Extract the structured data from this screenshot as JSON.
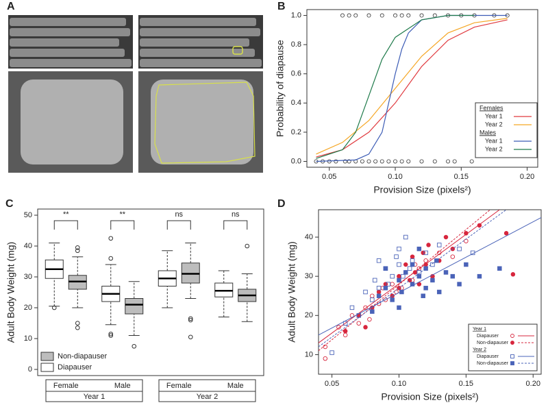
{
  "panel_a": {
    "label": "A"
  },
  "chart_data": [
    {
      "type": "line",
      "label": "B",
      "ylabel": "Probability of diapause",
      "xlabel": "Provision Size (pixels²)",
      "xlim": [
        0.033,
        0.208
      ],
      "ylim": [
        -0.04,
        1.04
      ],
      "xticks": [
        {
          "value": 0.05,
          "label": "0.05"
        },
        {
          "value": 0.1,
          "label": "0.10"
        },
        {
          "value": 0.15,
          "label": "0.15"
        },
        {
          "value": 0.2,
          "label": "0.20"
        }
      ],
      "yticks": [
        {
          "value": 0,
          "label": "0.0"
        },
        {
          "value": 0.2,
          "label": "0.2"
        },
        {
          "value": 0.4,
          "label": "0.4"
        },
        {
          "value": 0.6,
          "label": "0.6"
        },
        {
          "value": 0.8,
          "label": "0.8"
        },
        {
          "value": 1,
          "label": "1.0"
        }
      ],
      "legend": "lower right",
      "series_groups": [
        {
          "name": "Females",
          "series": [
            {
              "name": "Year 1",
              "color": "#e0393e",
              "x": [
                0.04,
                0.06,
                0.08,
                0.1,
                0.12,
                0.14,
                0.16,
                0.185
              ],
              "values": [
                0.03,
                0.08,
                0.2,
                0.4,
                0.65,
                0.83,
                0.92,
                0.97
              ]
            },
            {
              "name": "Year 2",
              "color": "#f5a623",
              "x": [
                0.04,
                0.06,
                0.08,
                0.1,
                0.12,
                0.14,
                0.16,
                0.185
              ],
              "values": [
                0.05,
                0.13,
                0.28,
                0.5,
                0.72,
                0.88,
                0.95,
                0.98
              ]
            }
          ]
        },
        {
          "name": "Males",
          "series": [
            {
              "name": "Year 1",
              "color": "#3b5bb5",
              "x": [
                0.04,
                0.07,
                0.08,
                0.09,
                0.1,
                0.105,
                0.11,
                0.12,
                0.14,
                0.185
              ],
              "values": [
                0.0,
                0.01,
                0.05,
                0.2,
                0.6,
                0.77,
                0.88,
                0.97,
                1.0,
                1.0
              ]
            },
            {
              "name": "Year 2",
              "color": "#1e7a4a",
              "x": [
                0.04,
                0.06,
                0.07,
                0.08,
                0.09,
                0.1,
                0.12,
                0.14,
                0.16
              ],
              "values": [
                0.02,
                0.08,
                0.2,
                0.45,
                0.7,
                0.85,
                0.97,
                1.0,
                1.0
              ]
            }
          ]
        }
      ],
      "observations": {
        "x": [
          0.04,
          0.045,
          0.05,
          0.055,
          0.062,
          0.065,
          0.07,
          0.075,
          0.08,
          0.085,
          0.09,
          0.095,
          0.1,
          0.105,
          0.11,
          0.12,
          0.13,
          0.14,
          0.145,
          0.158,
          0.06,
          0.065,
          0.07,
          0.08,
          0.09,
          0.1,
          0.105,
          0.11,
          0.12,
          0.13,
          0.14,
          0.15,
          0.16,
          0.175,
          0.185
        ],
        "y": [
          0,
          0,
          0,
          0,
          0,
          0,
          0,
          0,
          0,
          0,
          0,
          0,
          0,
          0,
          0,
          0,
          0,
          0,
          0,
          0,
          1,
          1,
          1,
          1,
          1,
          1,
          1,
          1,
          1,
          1,
          1,
          1,
          1,
          1,
          1
        ]
      }
    },
    {
      "type": "box",
      "label": "C",
      "ylabel": "Adult Body Weight (mg)",
      "ylim": [
        -2,
        52
      ],
      "yticks": [
        0,
        10,
        20,
        30,
        40,
        50
      ],
      "categories": [
        "Female",
        "Male",
        "Female",
        "Male"
      ],
      "groups": [
        "Year 1",
        "Year 2"
      ],
      "annotations": [
        "**",
        "**",
        "ns",
        "ns"
      ],
      "legend": "lower left",
      "series": [
        {
          "name": "Diapauser",
          "color": "#ffffff",
          "boxes": [
            {
              "whislo": 20.5,
              "q1": 29.5,
              "med": 32.5,
              "q3": 35.5,
              "whishi": 41,
              "fliers": [
                20
              ]
            },
            {
              "whislo": 14.5,
              "q1": 22,
              "med": 24.5,
              "q3": 27,
              "whishi": 34,
              "fliers": [
                42.5,
                36,
                11.5,
                11
              ]
            },
            {
              "whislo": 20,
              "q1": 27,
              "med": 29.5,
              "q3": 32,
              "whishi": 38.5,
              "fliers": []
            },
            {
              "whislo": 17,
              "q1": 23.5,
              "med": 25.5,
              "q3": 28,
              "whishi": 32,
              "fliers": []
            }
          ]
        },
        {
          "name": "Non-diapauser",
          "color": "#bdbdbd",
          "boxes": [
            {
              "whislo": 20,
              "q1": 26,
              "med": 28.5,
              "q3": 30.5,
              "whishi": 36.5,
              "fliers": [
                39.5,
                38.5,
                15,
                13.5
              ]
            },
            {
              "whislo": 11,
              "q1": 18,
              "med": 21,
              "q3": 23,
              "whishi": 28.5,
              "fliers": [
                7.5
              ]
            },
            {
              "whislo": 23,
              "q1": 28,
              "med": 31,
              "q3": 34.5,
              "whishi": 41,
              "fliers": [
                16.5,
                16,
                10.5
              ]
            },
            {
              "whislo": 15.5,
              "q1": 22,
              "med": 24,
              "q3": 26,
              "whishi": 31,
              "fliers": [
                40
              ]
            }
          ]
        }
      ]
    },
    {
      "type": "scatter",
      "label": "D",
      "ylabel": "Adult Body Weight (mg)",
      "xlabel": "Provision Size (pixels²)",
      "xlim": [
        0.04,
        0.206
      ],
      "ylim": [
        5,
        47
      ],
      "xticks": [
        0.05,
        {
          "value": 0.1,
          "label": "0.10"
        },
        0.15,
        {
          "value": 0.2,
          "label": "0.20"
        }
      ],
      "yticks": [
        10,
        20,
        30,
        40
      ],
      "legend": "lower right",
      "series_groups": [
        {
          "name": "Year 1",
          "series": [
            {
              "name": "Diapauser",
              "color": "#d7263d",
              "marker": "circle",
              "filled": false,
              "linestyle": "solid",
              "x": [
                0.045,
                0.055,
                0.06,
                0.065,
                0.07,
                0.075,
                0.078,
                0.08,
                0.085,
                0.088,
                0.09,
                0.095,
                0.098,
                0.1,
                0.102,
                0.105,
                0.11,
                0.112,
                0.115,
                0.12,
                0.125,
                0.13,
                0.14,
                0.15,
                0.045
              ],
              "y": [
                9,
                17,
                15,
                20,
                18,
                22,
                19,
                25,
                23,
                27,
                24,
                28,
                26,
                30,
                27,
                31,
                29,
                33,
                32,
                34,
                30,
                36,
                35,
                39,
                12
              ],
              "fit_x": [
                0.04,
                0.175
              ],
              "fit_y": [
                13,
                47
              ]
            },
            {
              "name": "Non-diapauser",
              "color": "#d7263d",
              "marker": "circle",
              "filled": true,
              "linestyle": "dashed",
              "x": [
                0.06,
                0.07,
                0.08,
                0.085,
                0.09,
                0.095,
                0.1,
                0.1,
                0.105,
                0.108,
                0.11,
                0.112,
                0.115,
                0.118,
                0.12,
                0.122,
                0.125,
                0.13,
                0.135,
                0.14,
                0.15,
                0.16,
                0.18,
                0.185,
                0.075
              ],
              "y": [
                16,
                20,
                22,
                26,
                28,
                25,
                30,
                27,
                33,
                29,
                35,
                31,
                28,
                36,
                33,
                38,
                30,
                34,
                40,
                37,
                41,
                43,
                41,
                30.5,
                17
              ],
              "fit_x": [
                0.04,
                0.168
              ],
              "fit_y": [
                11,
                47
              ]
            }
          ]
        },
        {
          "name": "Year 2",
          "series": [
            {
              "name": "Diapauser",
              "color": "#4a63b8",
              "marker": "square",
              "filled": false,
              "linestyle": "solid",
              "x": [
                0.05,
                0.06,
                0.065,
                0.07,
                0.075,
                0.08,
                0.082,
                0.085,
                0.09,
                0.092,
                0.095,
                0.098,
                0.1,
                0.1,
                0.103,
                0.105,
                0.108,
                0.11,
                0.115,
                0.12,
                0.125,
                0.13,
                0.145,
                0.155,
                0.085
              ],
              "y": [
                10.5,
                18,
                22,
                20,
                26,
                24,
                29,
                27,
                32,
                28,
                30,
                35,
                33,
                37,
                30,
                40,
                32,
                34,
                31,
                36,
                33,
                38,
                37,
                36,
                34
              ],
              "fit_x": [
                0.04,
                0.206
              ],
              "fit_y": [
                15,
                45
              ]
            },
            {
              "name": "Non-diapauser",
              "color": "#4a63b8",
              "marker": "square",
              "filled": true,
              "linestyle": "dashed",
              "x": [
                0.08,
                0.085,
                0.09,
                0.095,
                0.1,
                0.102,
                0.105,
                0.11,
                0.11,
                0.115,
                0.118,
                0.12,
                0.12,
                0.125,
                0.128,
                0.13,
                0.135,
                0.14,
                0.145,
                0.15,
                0.16,
                0.175,
                0.1,
                0.115,
                0.09
              ],
              "y": [
                21,
                25,
                27,
                24,
                29,
                26,
                31,
                28,
                33,
                30,
                25,
                32,
                27,
                29,
                34,
                26,
                31,
                30,
                28,
                33,
                30,
                32,
                22,
                37,
                32
              ],
              "fit_x": [
                0.04,
                0.18
              ],
              "fit_y": [
                12,
                47
              ]
            }
          ]
        }
      ]
    }
  ]
}
